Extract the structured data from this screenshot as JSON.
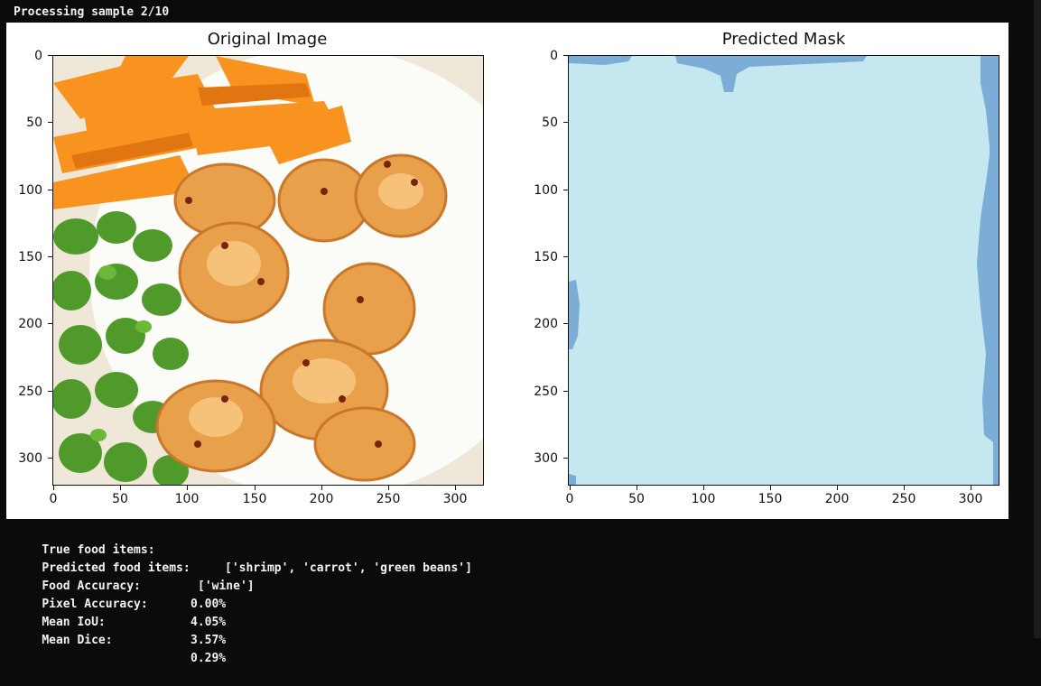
{
  "console": {
    "processing": "Processing sample 2/10"
  },
  "figure": {
    "left_title": "Original Image",
    "right_title": "Predicted Mask",
    "yticks": [
      "0",
      "50",
      "100",
      "150",
      "200",
      "250",
      "300"
    ],
    "xticks": [
      "0",
      "50",
      "100",
      "150",
      "200",
      "250",
      "300"
    ],
    "axis_range": {
      "x": [
        0,
        320
      ],
      "y": [
        0,
        320
      ]
    },
    "mask_colors": {
      "background": "#c5e7ef",
      "predicted_class": "#7badd6"
    }
  },
  "summary": {
    "true_label": "True food items:",
    "true_value": "['shrimp', 'carrot', 'green beans']",
    "pred_label": "Predicted food items:",
    "pred_value": "['wine']",
    "food_acc_label": "Food Accuracy:",
    "food_acc_value": "0.00%",
    "pixel_acc_label": "Pixel Accuracy:",
    "pixel_acc_value": "4.05%",
    "iou_label": "Mean IoU:",
    "iou_value": "3.57%",
    "dice_label": "Mean Dice:",
    "dice_value": "0.29%"
  }
}
